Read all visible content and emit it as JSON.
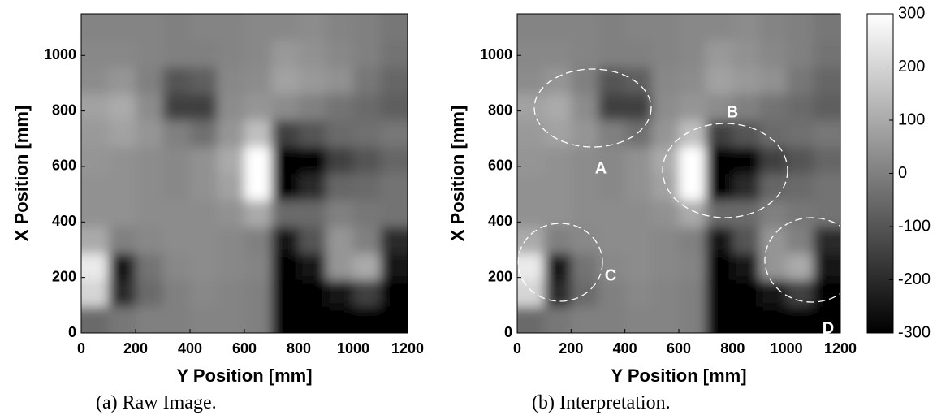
{
  "chart_data": [
    {
      "type": "heatmap",
      "caption": "(a) Raw Image.",
      "xlabel": "Y Position [mm]",
      "ylabel": "X Position [mm]",
      "xlim": [
        0,
        1200
      ],
      "ylim": [
        0,
        1150
      ],
      "xticks": [
        0,
        200,
        400,
        600,
        800,
        1000,
        1200
      ],
      "yticks": [
        0,
        200,
        400,
        600,
        800,
        1000
      ],
      "x": [
        50,
        150,
        250,
        350,
        450,
        550,
        650,
        750,
        850,
        950,
        1050,
        1150
      ],
      "y": [
        48,
        144,
        240,
        335,
        431,
        527,
        623,
        719,
        815,
        910,
        1006,
        1102
      ],
      "z": [
        [
          -50,
          -20,
          0,
          0,
          10,
          10,
          0,
          -300,
          -300,
          -300,
          -300,
          -300
        ],
        [
          200,
          -200,
          -50,
          0,
          20,
          10,
          0,
          -300,
          -300,
          -250,
          -150,
          -300
        ],
        [
          250,
          -250,
          -30,
          20,
          30,
          20,
          10,
          -300,
          -250,
          50,
          100,
          -250
        ],
        [
          100,
          0,
          20,
          30,
          30,
          20,
          0,
          -250,
          -100,
          50,
          0,
          -200
        ],
        [
          40,
          40,
          30,
          30,
          30,
          40,
          100,
          -50,
          -50,
          0,
          -20,
          -30
        ],
        [
          40,
          40,
          30,
          20,
          40,
          80,
          300,
          -300,
          -200,
          -60,
          -50,
          -30
        ],
        [
          50,
          40,
          30,
          20,
          40,
          100,
          300,
          -300,
          -300,
          -150,
          -100,
          -60
        ],
        [
          60,
          80,
          50,
          0,
          -40,
          50,
          150,
          -150,
          -100,
          -50,
          -40,
          -20
        ],
        [
          80,
          100,
          30,
          -150,
          -150,
          30,
          50,
          30,
          0,
          -30,
          -50,
          -80
        ],
        [
          30,
          50,
          0,
          -100,
          -80,
          20,
          30,
          80,
          60,
          40,
          -20,
          -60
        ],
        [
          20,
          20,
          10,
          0,
          0,
          10,
          20,
          60,
          40,
          20,
          0,
          -30
        ],
        [
          10,
          10,
          10,
          0,
          10,
          10,
          20,
          20,
          30,
          10,
          0,
          -20
        ]
      ]
    },
    {
      "type": "heatmap",
      "caption": "(b) Interpretation.",
      "xlabel": "Y Position [mm]",
      "ylabel": "X Position [mm]",
      "xlim": [
        0,
        1200
      ],
      "ylim": [
        0,
        1150
      ],
      "xticks": [
        0,
        200,
        400,
        600,
        800,
        1000,
        1200
      ],
      "yticks": [
        0,
        200,
        400,
        600,
        800,
        1000
      ],
      "annotations": [
        "A",
        "B",
        "C",
        "D"
      ],
      "clim": [
        -300,
        300
      ],
      "cticks": [
        -300,
        -200,
        -100,
        0,
        100,
        200,
        300
      ]
    }
  ]
}
